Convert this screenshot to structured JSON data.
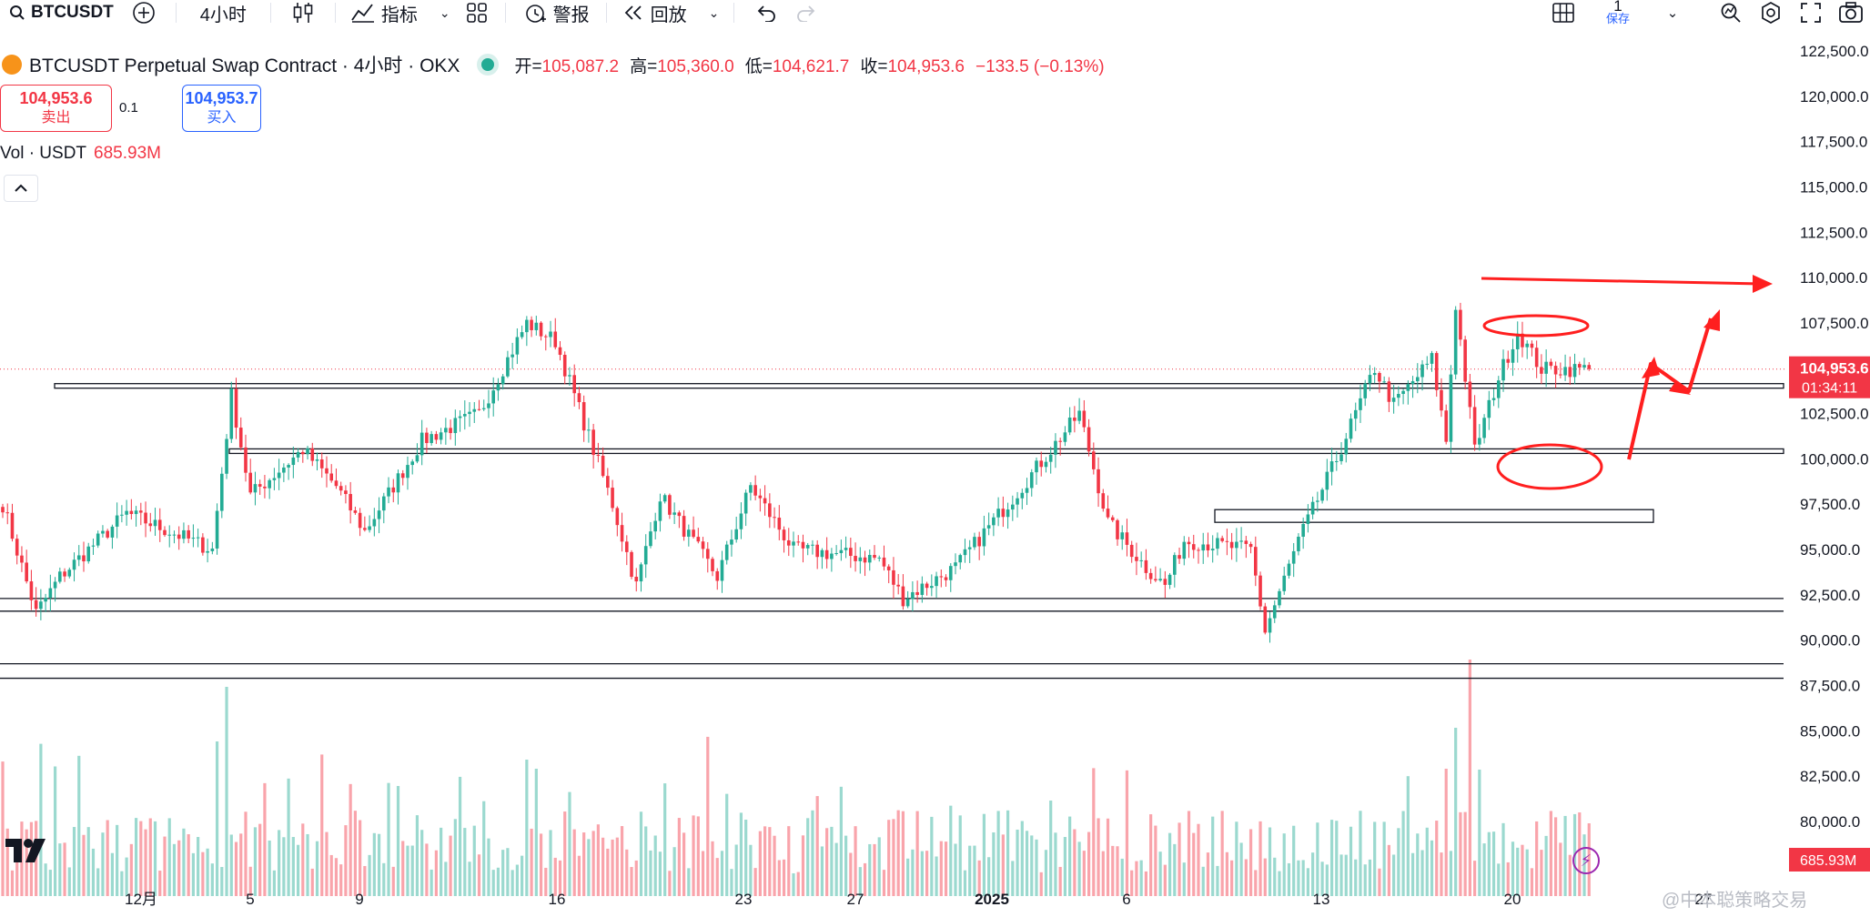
{
  "toolbar": {
    "symbol": "BTCUSDT",
    "interval": "4小时",
    "indicators_label": "指标",
    "alert_label": "警报",
    "replay_label": "回放",
    "layout_number": "1",
    "save_label": "保存"
  },
  "legend": {
    "title": "BTCUSDT Perpetual Swap Contract · 4小时 · OKX",
    "open_label": "开=",
    "open": "105,087.2",
    "high_label": "高=",
    "high": "105,360.0",
    "low_label": "低=",
    "low": "104,621.7",
    "close_label": "收=",
    "close": "104,953.6",
    "change": "−133.5 (−0.13%)"
  },
  "trade": {
    "sell_price": "104,953.6",
    "sell_label": "卖出",
    "quantity": "0.1",
    "buy_price": "104,953.7",
    "buy_label": "买入"
  },
  "volume_legend": {
    "label": "Vol · USDT",
    "value": "685.93M"
  },
  "price_badge": {
    "price": "104,953.6",
    "countdown": "01:34:11"
  },
  "volume_badge": "685.93M",
  "watermark": "@中本聪策略交易",
  "colors": {
    "up": "#22ab94",
    "down": "#f23645",
    "annotation": "#ff1f1f"
  },
  "chart_data": {
    "type": "candlestick",
    "y_axis_ticks": [
      "122,500.0",
      "120,000.0",
      "117,500.0",
      "115,000.0",
      "112,500.0",
      "110,000.0",
      "107,500.0",
      "105,000.0",
      "102,500.0",
      "100,000.0",
      "97,500.0",
      "95,000.0",
      "92,500.0",
      "90,000.0",
      "87,500.0",
      "85,000.0",
      "82,500.0",
      "80,000.0"
    ],
    "x_axis_ticks": [
      "12月",
      "5",
      "9",
      "16",
      "23",
      "27",
      "2025",
      "6",
      "13",
      "20",
      "27"
    ],
    "price_scale": [
      80000,
      122500
    ],
    "candle_count": 334,
    "key_points": [
      {
        "index": 0,
        "price": 97500
      },
      {
        "index": 7,
        "price": 91500
      },
      {
        "index": 12,
        "price": 93500
      },
      {
        "index": 26,
        "price": 97000
      },
      {
        "index": 44,
        "price": 95000
      },
      {
        "index": 48,
        "price": 103500
      },
      {
        "index": 52,
        "price": 98000
      },
      {
        "index": 63,
        "price": 100500
      },
      {
        "index": 70,
        "price": 98500
      },
      {
        "index": 76,
        "price": 96000
      },
      {
        "index": 88,
        "price": 101000
      },
      {
        "index": 100,
        "price": 102500
      },
      {
        "index": 110,
        "price": 107500
      },
      {
        "index": 116,
        "price": 106500
      },
      {
        "index": 128,
        "price": 97500
      },
      {
        "index": 133,
        "price": 93000
      },
      {
        "index": 138,
        "price": 98000
      },
      {
        "index": 150,
        "price": 93500
      },
      {
        "index": 157,
        "price": 98500
      },
      {
        "index": 166,
        "price": 95000
      },
      {
        "index": 184,
        "price": 94500
      },
      {
        "index": 189,
        "price": 92300
      },
      {
        "index": 200,
        "price": 94000
      },
      {
        "index": 214,
        "price": 98500
      },
      {
        "index": 226,
        "price": 102500
      },
      {
        "index": 232,
        "price": 96500
      },
      {
        "index": 240,
        "price": 94000
      },
      {
        "index": 244,
        "price": 93000
      },
      {
        "index": 248,
        "price": 95500
      },
      {
        "index": 262,
        "price": 95000
      },
      {
        "index": 265,
        "price": 90500
      },
      {
        "index": 272,
        "price": 95500
      },
      {
        "index": 280,
        "price": 100000
      },
      {
        "index": 288,
        "price": 105000
      },
      {
        "index": 292,
        "price": 103000
      },
      {
        "index": 300,
        "price": 105500
      },
      {
        "index": 303,
        "price": 101000
      },
      {
        "index": 305,
        "price": 108500
      },
      {
        "index": 309,
        "price": 100500
      },
      {
        "index": 314,
        "price": 104500
      },
      {
        "index": 318,
        "price": 107000
      },
      {
        "index": 323,
        "price": 104953.6
      }
    ],
    "horizontal_levels": [
      104000,
      100400,
      92300,
      91600,
      88700,
      87900
    ],
    "zone": {
      "from_index": 240,
      "to_index": 325,
      "low": 96500,
      "high": 97200
    },
    "last_price": 104953.6,
    "last_volume": "685.93M"
  }
}
